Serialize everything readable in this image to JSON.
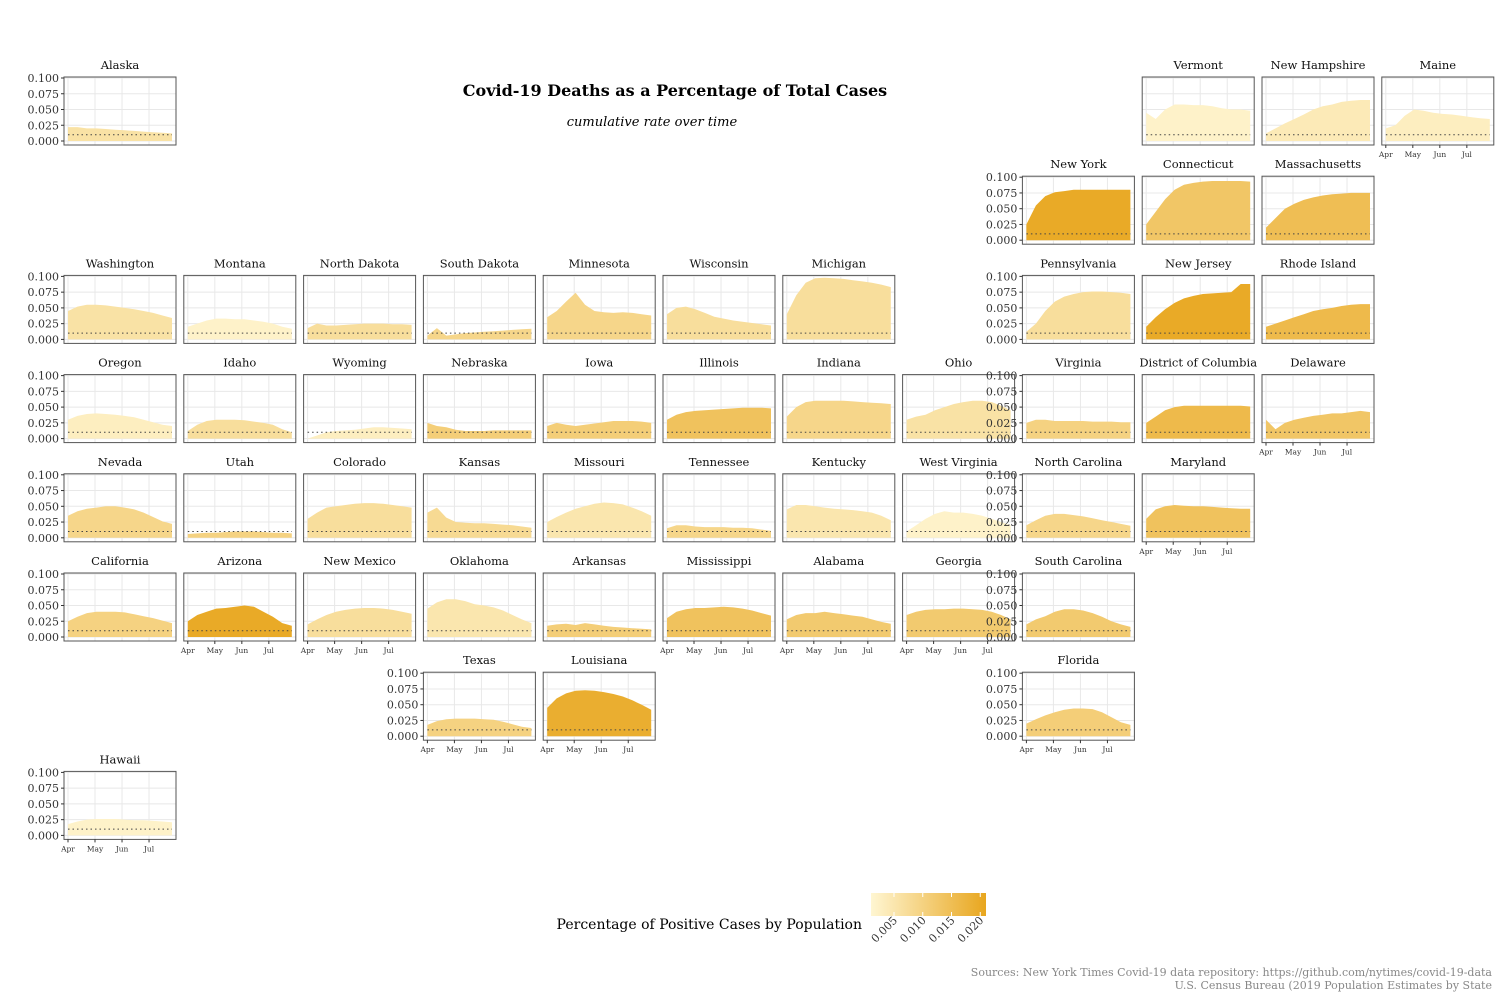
{
  "title": "Covid-19 Deaths as a Percentage of Total Cases",
  "subtitle": "cumulative rate over time",
  "legend": {
    "title": "Percentage of Positive Cases by Population",
    "ticks": [
      "0.005",
      "0.010",
      "0.015",
      "0.020"
    ],
    "tick_values": [
      0.005,
      0.01,
      0.015,
      0.02
    ],
    "range": [
      0.001,
      0.021
    ],
    "color_low": "#FFF6D2",
    "color_high": "#E8A61E"
  },
  "sources": [
    "Sources: New York Times Covid-19 data repository: https://github.com/nytimes/covid-19-data",
    "U.S. Census Bureau (2019 Population Estimates by State"
  ],
  "chart_data": {
    "type": "area",
    "layout": "geofacet small multiples (US states)",
    "y_ticks": [
      0.1,
      0.075,
      0.05,
      0.025,
      0.0
    ],
    "y_tick_labels": [
      "0.100",
      "0.075",
      "0.050",
      "0.025",
      "0.000"
    ],
    "ylim": [
      0,
      0.1
    ],
    "x_ticks": [
      "Apr",
      "May",
      "Jun",
      "Jul"
    ],
    "x_range": [
      "Apr",
      "end of Jul"
    ],
    "reference_line": {
      "y": 0.01,
      "style": "dotted"
    },
    "grid": true,
    "states": [
      {
        "name": "Alaska",
        "row": 0,
        "col": 0,
        "fill": 0.006,
        "values": [
          0.022,
          0.022,
          0.02,
          0.02,
          0.019,
          0.018,
          0.017,
          0.016,
          0.015,
          0.014,
          0.013,
          0.012
        ],
        "yaxis": true
      },
      {
        "name": "Vermont",
        "row": 0,
        "col": 9,
        "fill": 0.002,
        "values": [
          0.045,
          0.035,
          0.05,
          0.058,
          0.058,
          0.057,
          0.057,
          0.055,
          0.052,
          0.05,
          0.05,
          0.048
        ]
      },
      {
        "name": "New Hampshire",
        "row": 0,
        "col": 10,
        "fill": 0.004,
        "values": [
          0.012,
          0.02,
          0.028,
          0.035,
          0.042,
          0.05,
          0.055,
          0.058,
          0.062,
          0.064,
          0.065,
          0.065
        ]
      },
      {
        "name": "Maine",
        "row": 0,
        "col": 11,
        "fill": 0.003,
        "values": [
          0.02,
          0.025,
          0.04,
          0.05,
          0.048,
          0.045,
          0.043,
          0.042,
          0.04,
          0.038,
          0.036,
          0.035
        ],
        "xaxis": true
      },
      {
        "name": "New York",
        "row": 1,
        "col": 8,
        "fill": 0.02,
        "values": [
          0.025,
          0.055,
          0.07,
          0.076,
          0.078,
          0.08,
          0.08,
          0.08,
          0.08,
          0.08,
          0.08,
          0.08
        ],
        "yaxis": true
      },
      {
        "name": "Connecticut",
        "row": 1,
        "col": 9,
        "fill": 0.013,
        "values": [
          0.025,
          0.045,
          0.065,
          0.08,
          0.088,
          0.091,
          0.093,
          0.094,
          0.094,
          0.094,
          0.094,
          0.093
        ]
      },
      {
        "name": "Massachusetts",
        "row": 1,
        "col": 10,
        "fill": 0.015,
        "values": [
          0.02,
          0.035,
          0.05,
          0.058,
          0.064,
          0.068,
          0.071,
          0.073,
          0.074,
          0.075,
          0.075,
          0.075
        ]
      },
      {
        "name": "Washington",
        "row": 2,
        "col": 0,
        "fill": 0.006,
        "values": [
          0.045,
          0.052,
          0.055,
          0.055,
          0.054,
          0.052,
          0.05,
          0.048,
          0.045,
          0.042,
          0.038,
          0.034
        ],
        "yaxis": true
      },
      {
        "name": "Montana",
        "row": 2,
        "col": 1,
        "fill": 0.002,
        "values": [
          0.02,
          0.025,
          0.03,
          0.033,
          0.033,
          0.032,
          0.032,
          0.03,
          0.028,
          0.025,
          0.02,
          0.017
        ]
      },
      {
        "name": "North Dakota",
        "row": 2,
        "col": 2,
        "fill": 0.007,
        "values": [
          0.018,
          0.025,
          0.022,
          0.022,
          0.023,
          0.024,
          0.025,
          0.025,
          0.025,
          0.024,
          0.024,
          0.023
        ]
      },
      {
        "name": "South Dakota",
        "row": 2,
        "col": 3,
        "fill": 0.009,
        "values": [
          0.006,
          0.018,
          0.006,
          0.008,
          0.01,
          0.011,
          0.012,
          0.013,
          0.014,
          0.015,
          0.016,
          0.017
        ]
      },
      {
        "name": "Minnesota",
        "row": 2,
        "col": 4,
        "fill": 0.009,
        "values": [
          0.035,
          0.045,
          0.06,
          0.074,
          0.055,
          0.045,
          0.043,
          0.042,
          0.043,
          0.042,
          0.04,
          0.038
        ]
      },
      {
        "name": "Wisconsin",
        "row": 2,
        "col": 5,
        "fill": 0.007,
        "values": [
          0.04,
          0.05,
          0.052,
          0.048,
          0.042,
          0.036,
          0.033,
          0.03,
          0.028,
          0.026,
          0.024,
          0.022
        ]
      },
      {
        "name": "Michigan",
        "row": 2,
        "col": 6,
        "fill": 0.007,
        "values": [
          0.04,
          0.07,
          0.09,
          0.097,
          0.098,
          0.097,
          0.096,
          0.094,
          0.092,
          0.09,
          0.087,
          0.083
        ]
      },
      {
        "name": "Pennsylvania",
        "row": 2,
        "col": 8,
        "fill": 0.007,
        "values": [
          0.012,
          0.025,
          0.045,
          0.06,
          0.068,
          0.072,
          0.075,
          0.076,
          0.076,
          0.075,
          0.074,
          0.072
        ],
        "yaxis": true
      },
      {
        "name": "New Jersey",
        "row": 2,
        "col": 9,
        "fill": 0.02,
        "values": [
          0.02,
          0.035,
          0.048,
          0.058,
          0.065,
          0.069,
          0.072,
          0.073,
          0.074,
          0.075,
          0.088,
          0.088
        ]
      },
      {
        "name": "Rhode Island",
        "row": 2,
        "col": 10,
        "fill": 0.016,
        "values": [
          0.02,
          0.025,
          0.03,
          0.035,
          0.04,
          0.045,
          0.048,
          0.05,
          0.053,
          0.055,
          0.056,
          0.056
        ]
      },
      {
        "name": "Oregon",
        "row": 3,
        "col": 0,
        "fill": 0.003,
        "values": [
          0.03,
          0.036,
          0.039,
          0.04,
          0.039,
          0.038,
          0.036,
          0.034,
          0.03,
          0.026,
          0.022,
          0.02
        ],
        "yaxis": true
      },
      {
        "name": "Idaho",
        "row": 3,
        "col": 1,
        "fill": 0.007,
        "values": [
          0.012,
          0.022,
          0.028,
          0.03,
          0.03,
          0.03,
          0.029,
          0.027,
          0.025,
          0.022,
          0.015,
          0.01
        ]
      },
      {
        "name": "Wyoming",
        "row": 3,
        "col": 2,
        "fill": 0.003,
        "values": [
          0.0,
          0.005,
          0.01,
          0.012,
          0.013,
          0.014,
          0.016,
          0.018,
          0.018,
          0.017,
          0.016,
          0.015
        ]
      },
      {
        "name": "Nebraska",
        "row": 3,
        "col": 3,
        "fill": 0.011,
        "values": [
          0.025,
          0.02,
          0.018,
          0.014,
          0.012,
          0.012,
          0.012,
          0.013,
          0.013,
          0.013,
          0.013,
          0.013
        ]
      },
      {
        "name": "Iowa",
        "row": 3,
        "col": 4,
        "fill": 0.011,
        "values": [
          0.02,
          0.025,
          0.022,
          0.02,
          0.022,
          0.024,
          0.026,
          0.028,
          0.028,
          0.028,
          0.027,
          0.025
        ]
      },
      {
        "name": "Illinois",
        "row": 3,
        "col": 5,
        "fill": 0.014,
        "values": [
          0.03,
          0.038,
          0.042,
          0.044,
          0.045,
          0.046,
          0.047,
          0.048,
          0.049,
          0.049,
          0.049,
          0.048
        ]
      },
      {
        "name": "Indiana",
        "row": 3,
        "col": 6,
        "fill": 0.009,
        "values": [
          0.035,
          0.05,
          0.058,
          0.06,
          0.06,
          0.06,
          0.06,
          0.059,
          0.058,
          0.057,
          0.056,
          0.055
        ]
      },
      {
        "name": "Ohio",
        "row": 3,
        "col": 7,
        "fill": 0.006,
        "values": [
          0.03,
          0.035,
          0.038,
          0.045,
          0.05,
          0.055,
          0.058,
          0.06,
          0.06,
          0.058,
          0.052,
          0.045
        ]
      },
      {
        "name": "Virginia",
        "row": 3,
        "col": 8,
        "fill": 0.01,
        "values": [
          0.025,
          0.03,
          0.03,
          0.028,
          0.028,
          0.028,
          0.028,
          0.027,
          0.027,
          0.027,
          0.026,
          0.026
        ],
        "yaxis": true
      },
      {
        "name": "District of Columbia",
        "row": 3,
        "col": 9,
        "fill": 0.016,
        "values": [
          0.025,
          0.035,
          0.045,
          0.05,
          0.052,
          0.052,
          0.052,
          0.052,
          0.052,
          0.052,
          0.052,
          0.051
        ]
      },
      {
        "name": "Delaware",
        "row": 3,
        "col": 10,
        "fill": 0.013,
        "values": [
          0.03,
          0.015,
          0.025,
          0.03,
          0.033,
          0.036,
          0.038,
          0.04,
          0.04,
          0.042,
          0.044,
          0.042
        ],
        "xaxis": true
      },
      {
        "name": "Nevada",
        "row": 4,
        "col": 0,
        "fill": 0.009,
        "values": [
          0.035,
          0.042,
          0.046,
          0.048,
          0.05,
          0.05,
          0.048,
          0.045,
          0.04,
          0.033,
          0.026,
          0.022
        ],
        "yaxis": true
      },
      {
        "name": "Utah",
        "row": 4,
        "col": 1,
        "fill": 0.01,
        "values": [
          0.006,
          0.007,
          0.008,
          0.008,
          0.009,
          0.01,
          0.01,
          0.01,
          0.009,
          0.008,
          0.008,
          0.007
        ]
      },
      {
        "name": "Colorado",
        "row": 4,
        "col": 2,
        "fill": 0.007,
        "values": [
          0.03,
          0.04,
          0.048,
          0.05,
          0.052,
          0.054,
          0.055,
          0.055,
          0.054,
          0.052,
          0.05,
          0.048
        ]
      },
      {
        "name": "Kansas",
        "row": 4,
        "col": 3,
        "fill": 0.008,
        "values": [
          0.04,
          0.048,
          0.032,
          0.025,
          0.024,
          0.023,
          0.023,
          0.022,
          0.021,
          0.02,
          0.018,
          0.016
        ]
      },
      {
        "name": "Missouri",
        "row": 4,
        "col": 4,
        "fill": 0.005,
        "values": [
          0.025,
          0.033,
          0.04,
          0.046,
          0.05,
          0.054,
          0.056,
          0.055,
          0.053,
          0.048,
          0.042,
          0.035
        ]
      },
      {
        "name": "Tennessee",
        "row": 4,
        "col": 5,
        "fill": 0.009,
        "values": [
          0.015,
          0.02,
          0.02,
          0.018,
          0.017,
          0.017,
          0.017,
          0.016,
          0.016,
          0.015,
          0.013,
          0.011
        ]
      },
      {
        "name": "Kentucky",
        "row": 4,
        "col": 6,
        "fill": 0.005,
        "values": [
          0.045,
          0.052,
          0.052,
          0.05,
          0.048,
          0.046,
          0.045,
          0.044,
          0.042,
          0.04,
          0.035,
          0.028
        ]
      },
      {
        "name": "West Virginia",
        "row": 4,
        "col": 7,
        "fill": 0.002,
        "values": [
          0.01,
          0.02,
          0.03,
          0.038,
          0.042,
          0.04,
          0.04,
          0.038,
          0.035,
          0.03,
          0.025,
          0.02
        ]
      },
      {
        "name": "North Carolina",
        "row": 4,
        "col": 8,
        "fill": 0.009,
        "values": [
          0.02,
          0.028,
          0.035,
          0.038,
          0.038,
          0.036,
          0.034,
          0.031,
          0.028,
          0.025,
          0.022,
          0.019
        ],
        "yaxis": true
      },
      {
        "name": "Maryland",
        "row": 4,
        "col": 9,
        "fill": 0.014,
        "values": [
          0.03,
          0.045,
          0.05,
          0.052,
          0.051,
          0.05,
          0.05,
          0.049,
          0.048,
          0.047,
          0.046,
          0.046
        ],
        "xaxis": true
      },
      {
        "name": "California",
        "row": 5,
        "col": 0,
        "fill": 0.01,
        "values": [
          0.025,
          0.032,
          0.038,
          0.04,
          0.04,
          0.04,
          0.039,
          0.036,
          0.033,
          0.03,
          0.026,
          0.022
        ],
        "yaxis": true
      },
      {
        "name": "Arizona",
        "row": 5,
        "col": 1,
        "fill": 0.02,
        "values": [
          0.025,
          0.035,
          0.04,
          0.045,
          0.046,
          0.048,
          0.05,
          0.048,
          0.04,
          0.032,
          0.022,
          0.018
        ],
        "xaxis": true
      },
      {
        "name": "New Mexico",
        "row": 5,
        "col": 2,
        "fill": 0.007,
        "values": [
          0.02,
          0.028,
          0.035,
          0.04,
          0.043,
          0.045,
          0.046,
          0.046,
          0.045,
          0.043,
          0.04,
          0.037
        ],
        "xaxis": true
      },
      {
        "name": "Oklahoma",
        "row": 5,
        "col": 3,
        "fill": 0.005,
        "values": [
          0.045,
          0.055,
          0.06,
          0.06,
          0.057,
          0.052,
          0.05,
          0.047,
          0.042,
          0.035,
          0.028,
          0.022
        ]
      },
      {
        "name": "Arkansas",
        "row": 5,
        "col": 4,
        "fill": 0.011,
        "values": [
          0.018,
          0.02,
          0.021,
          0.019,
          0.022,
          0.02,
          0.018,
          0.016,
          0.015,
          0.014,
          0.013,
          0.012
        ]
      },
      {
        "name": "Mississippi",
        "row": 5,
        "col": 5,
        "fill": 0.014,
        "values": [
          0.03,
          0.04,
          0.044,
          0.046,
          0.046,
          0.047,
          0.048,
          0.047,
          0.045,
          0.042,
          0.038,
          0.034
        ],
        "xaxis": true
      },
      {
        "name": "Alabama",
        "row": 5,
        "col": 6,
        "fill": 0.012,
        "values": [
          0.028,
          0.035,
          0.038,
          0.038,
          0.04,
          0.038,
          0.036,
          0.034,
          0.032,
          0.028,
          0.024,
          0.021
        ],
        "xaxis": true
      },
      {
        "name": "Georgia",
        "row": 5,
        "col": 7,
        "fill": 0.012,
        "values": [
          0.035,
          0.04,
          0.043,
          0.044,
          0.044,
          0.045,
          0.045,
          0.044,
          0.043,
          0.04,
          0.035,
          0.028
        ],
        "xaxis": true
      },
      {
        "name": "South Carolina",
        "row": 5,
        "col": 8,
        "fill": 0.012,
        "values": [
          0.02,
          0.028,
          0.033,
          0.04,
          0.044,
          0.044,
          0.042,
          0.038,
          0.032,
          0.025,
          0.02,
          0.016
        ],
        "yaxis": true
      },
      {
        "name": "Texas",
        "row": 6,
        "col": 3,
        "fill": 0.01,
        "values": [
          0.018,
          0.024,
          0.027,
          0.028,
          0.028,
          0.028,
          0.027,
          0.026,
          0.023,
          0.019,
          0.015,
          0.013
        ],
        "yaxis": true,
        "xaxis": true
      },
      {
        "name": "Louisiana",
        "row": 6,
        "col": 4,
        "fill": 0.019,
        "values": [
          0.045,
          0.06,
          0.068,
          0.072,
          0.073,
          0.072,
          0.07,
          0.067,
          0.063,
          0.057,
          0.05,
          0.042
        ],
        "xaxis": true
      },
      {
        "name": "Florida",
        "row": 6,
        "col": 8,
        "fill": 0.011,
        "values": [
          0.02,
          0.027,
          0.033,
          0.038,
          0.042,
          0.044,
          0.044,
          0.043,
          0.038,
          0.03,
          0.022,
          0.018
        ],
        "yaxis": true,
        "xaxis": true
      },
      {
        "name": "Hawaii",
        "row": 7,
        "col": 0,
        "fill": 0.002,
        "values": [
          0.018,
          0.022,
          0.025,
          0.026,
          0.026,
          0.026,
          0.025,
          0.024,
          0.024,
          0.023,
          0.022,
          0.021
        ],
        "yaxis": true,
        "xaxis": true
      }
    ]
  }
}
